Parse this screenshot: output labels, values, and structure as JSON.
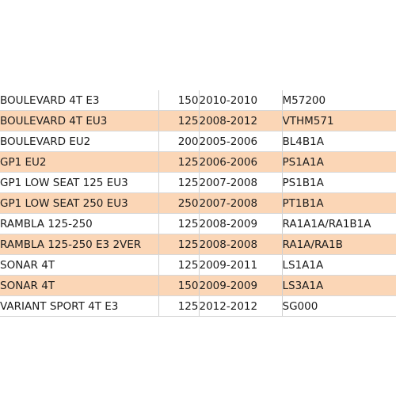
{
  "table": {
    "columns": [
      "model",
      "cc",
      "years",
      "code"
    ],
    "rows": [
      {
        "model": "BOULEVARD 4T E3",
        "cc": "150",
        "years": "2010-2010",
        "code": "M57200"
      },
      {
        "model": "BOULEVARD 4T EU3",
        "cc": "125",
        "years": "2008-2012",
        "code": "VTHM571"
      },
      {
        "model": "BOULEVARD EU2",
        "cc": "200",
        "years": "2005-2006",
        "code": "BL4B1A"
      },
      {
        "model": "GP1 EU2",
        "cc": "125",
        "years": "2006-2006",
        "code": "PS1A1A"
      },
      {
        "model": "GP1 LOW SEAT 125 EU3",
        "cc": "125",
        "years": "2007-2008",
        "code": "PS1B1A"
      },
      {
        "model": "GP1 LOW SEAT 250 EU3",
        "cc": "250",
        "years": "2007-2008",
        "code": "PT1B1A"
      },
      {
        "model": "RAMBLA 125-250",
        "cc": "125",
        "years": "2008-2009",
        "code": "RA1A1A/RA1B1A"
      },
      {
        "model": "RAMBLA 125-250 E3 2VER",
        "cc": "125",
        "years": "2008-2008",
        "code": "RA1A/RA1B"
      },
      {
        "model": "SONAR 4T",
        "cc": "125",
        "years": "2009-2011",
        "code": "LS1A1A"
      },
      {
        "model": "SONAR 4T",
        "cc": "150",
        "years": "2009-2009",
        "code": "LS3A1A"
      },
      {
        "model": "VARIANT SPORT 4T E3",
        "cc": "125",
        "years": "2012-2012",
        "code": "SG000"
      }
    ]
  },
  "colors": {
    "stripe": "#fbd6b6",
    "text": "#1c1c1c",
    "background": "#ffffff"
  }
}
